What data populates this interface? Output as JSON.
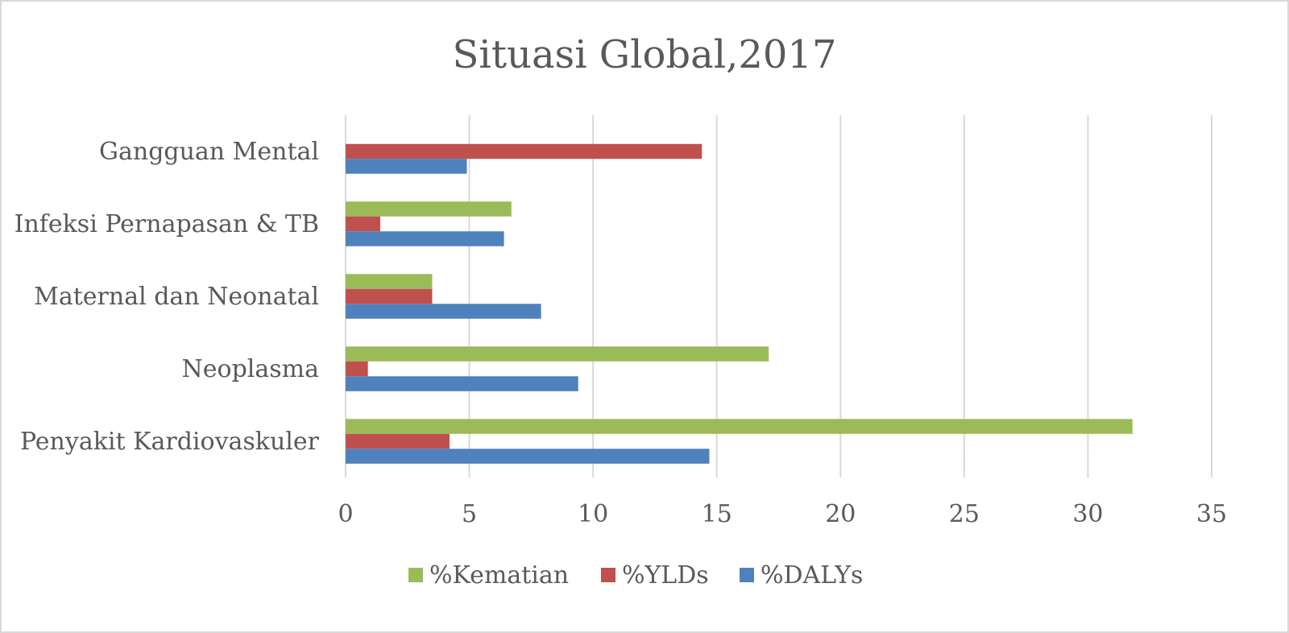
{
  "chart_data": {
    "type": "bar",
    "orientation": "horizontal",
    "title": "Situasi Global,2017",
    "xlabel": "",
    "ylabel": "",
    "categories": [
      "Gangguan Mental",
      "Infeksi Pernapasan & TB",
      "Maternal dan Neonatal",
      "Neoplasma",
      "Penyakit Kardiovaskuler"
    ],
    "series": [
      {
        "name": "%Kematian",
        "color": "#9bbb59",
        "values": [
          0,
          6.7,
          3.5,
          17.1,
          31.8
        ]
      },
      {
        "name": "%YLDs",
        "color": "#c0504d",
        "values": [
          14.4,
          1.4,
          3.5,
          0.9,
          4.2
        ]
      },
      {
        "name": "%DALYs",
        "color": "#4f81bd",
        "values": [
          4.9,
          6.4,
          7.9,
          9.4,
          14.7
        ]
      }
    ],
    "xlim": [
      0,
      35
    ],
    "xticks": [
      "0",
      "5",
      "10",
      "15",
      "20",
      "25",
      "30",
      "35"
    ],
    "grid": "vertical",
    "legend": "bottom"
  }
}
